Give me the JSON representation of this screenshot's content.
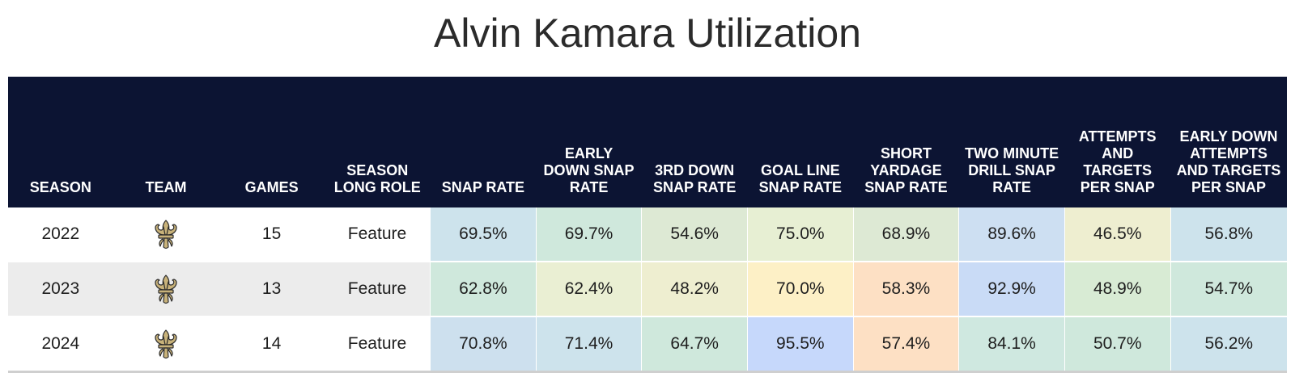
{
  "title": "Alvin Kamara Utilization",
  "headers": [
    {
      "key": "season",
      "label": "SEASON"
    },
    {
      "key": "team",
      "label": "TEAM"
    },
    {
      "key": "games",
      "label": "GAMES"
    },
    {
      "key": "role",
      "label": "SEASON LONG ROLE"
    },
    {
      "key": "snap_rate",
      "label": "SNAP RATE"
    },
    {
      "key": "early_down_snap_rate",
      "label": "EARLY DOWN SNAP RATE"
    },
    {
      "key": "third_down_snap_rate",
      "label": "3RD DOWN SNAP RATE"
    },
    {
      "key": "goal_line_snap_rate",
      "label": "GOAL LINE SNAP RATE"
    },
    {
      "key": "short_yardage_snap_rate",
      "label": "SHORT YARDAGE SNAP RATE"
    },
    {
      "key": "two_minute_drill_snap_rate",
      "label": "TWO MINUTE DRILL SNAP RATE"
    },
    {
      "key": "attempts_targets_per_snap",
      "label": "ATTEMPTS AND TARGETS PER SNAP"
    },
    {
      "key": "early_down_attempts_targets_per_snap",
      "label": "EARLY DOWN ATTEMPTS AND TARGETS PER SNAP"
    }
  ],
  "team_icon": "fleur-de-lis-icon",
  "rows": [
    {
      "season": "2022",
      "games": "15",
      "role": "Feature",
      "cells": [
        {
          "value": "69.5%",
          "color": "#cde3ec"
        },
        {
          "value": "69.7%",
          "color": "#cfe8dc"
        },
        {
          "value": "54.6%",
          "color": "#dde9d4"
        },
        {
          "value": "75.0%",
          "color": "#e7efd3"
        },
        {
          "value": "68.9%",
          "color": "#dde9d4"
        },
        {
          "value": "89.6%",
          "color": "#cddff2"
        },
        {
          "value": "46.5%",
          "color": "#eeeed0"
        },
        {
          "value": "56.8%",
          "color": "#cde3ec"
        }
      ]
    },
    {
      "season": "2023",
      "games": "13",
      "role": "Feature",
      "cells": [
        {
          "value": "62.8%",
          "color": "#cfe8dc"
        },
        {
          "value": "62.4%",
          "color": "#eaefd3"
        },
        {
          "value": "48.2%",
          "color": "#eeeed0"
        },
        {
          "value": "70.0%",
          "color": "#fdf0c6"
        },
        {
          "value": "58.3%",
          "color": "#fde0c4"
        },
        {
          "value": "92.9%",
          "color": "#c9dbf6"
        },
        {
          "value": "48.9%",
          "color": "#d8ebd4"
        },
        {
          "value": "54.7%",
          "color": "#cfe8dc"
        }
      ]
    },
    {
      "season": "2024",
      "games": "14",
      "role": "Feature",
      "cells": [
        {
          "value": "70.8%",
          "color": "#cde0ee"
        },
        {
          "value": "71.4%",
          "color": "#cde3ec"
        },
        {
          "value": "64.7%",
          "color": "#cfe8dc"
        },
        {
          "value": "95.5%",
          "color": "#c6d8fb"
        },
        {
          "value": "57.4%",
          "color": "#fde0c4"
        },
        {
          "value": "84.1%",
          "color": "#cfe8e0"
        },
        {
          "value": "50.7%",
          "color": "#cfe8dc"
        },
        {
          "value": "56.2%",
          "color": "#cde3ec"
        }
      ]
    }
  ]
}
